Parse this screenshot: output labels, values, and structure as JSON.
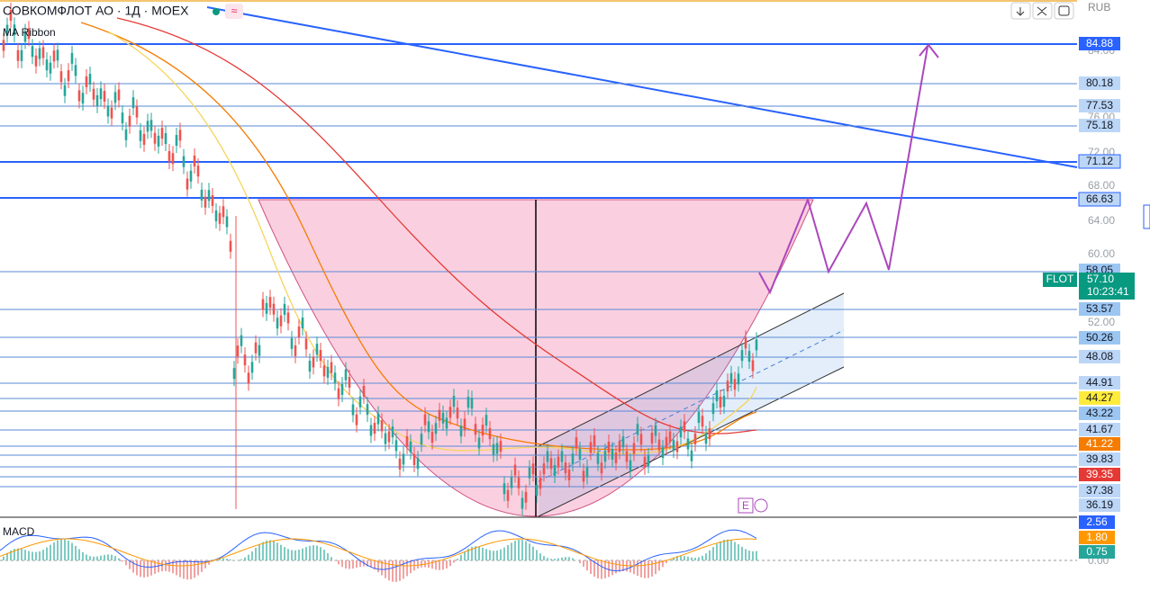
{
  "header": {
    "title": "СОВКОМФЛОТ АО · 1Д · MOEX",
    "indicator": "MA Ribbon",
    "currency": "RUB",
    "badge": "≈"
  },
  "price_axis": {
    "ticks": [
      "84.00",
      "76.00",
      "72.00",
      "68.00",
      "64.00",
      "60.00",
      "52.00",
      "0.00"
    ],
    "levels": [
      {
        "label": "84.88",
        "color": "#2962ff"
      },
      {
        "label": "80.18",
        "color": "#bcd6f7"
      },
      {
        "label": "77.53",
        "color": "#bcd6f7"
      },
      {
        "label": "75.18",
        "color": "#bcd6f7"
      },
      {
        "label": "71.12",
        "color": "#bcd6f7"
      },
      {
        "label": "66.63",
        "color": "#bcd6f7"
      },
      {
        "label": "58.05",
        "color": "#9cc6f2"
      },
      {
        "label": "53.57",
        "color": "#9cc6f2"
      },
      {
        "label": "50.26",
        "color": "#9cc6f2"
      },
      {
        "label": "48.08",
        "color": "#bcd6f7"
      },
      {
        "label": "44.91",
        "color": "#bcd6f7"
      },
      {
        "label": "44.27",
        "color": "#ffeb3b"
      },
      {
        "label": "43.22",
        "color": "#9cc6f2"
      },
      {
        "label": "41.67",
        "color": "#bcd6f7"
      },
      {
        "label": "41.22",
        "color": "#f57c00"
      },
      {
        "label": "39.83",
        "color": "#bcd6f7"
      },
      {
        "label": "39.35",
        "color": "#e53935"
      },
      {
        "label": "37.38",
        "color": "#bcd6f7"
      },
      {
        "label": "36.19",
        "color": "#bcd6f7"
      }
    ]
  },
  "last_price": {
    "symbol": "FLOT",
    "price": "57.10",
    "countdown": "10:23:41",
    "color": "#089981"
  },
  "macd": {
    "title": "MACD",
    "values": [
      {
        "label": "2.56",
        "color": "#2962ff"
      },
      {
        "label": "1.80",
        "color": "#ff9800"
      },
      {
        "label": "0.75",
        "color": "#26a69a"
      }
    ]
  },
  "event_badge": "E"
}
